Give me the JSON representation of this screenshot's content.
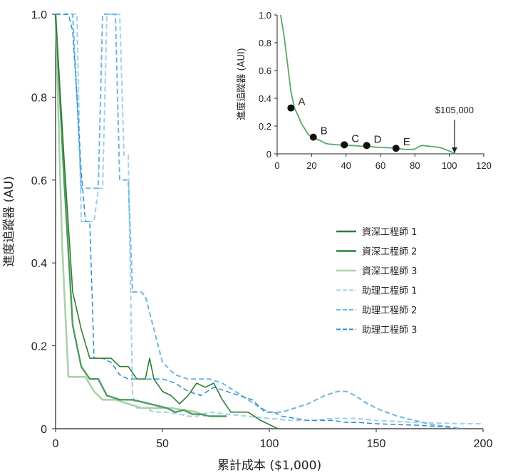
{
  "chart_data": [
    {
      "id": "main",
      "type": "line",
      "xlabel": "累計成本 ($1,000)",
      "ylabel": "進度追蹤器 (AU)",
      "xlim": [
        0,
        200
      ],
      "ylim": [
        0,
        1.0
      ],
      "xticks": [
        "0",
        "50",
        "100",
        "150",
        "200"
      ],
      "yticks": [
        "0",
        "0.2",
        "0.4",
        "0.6",
        "0.8",
        "1.0"
      ],
      "grid": false,
      "legend_position": "right",
      "series": [
        {
          "name": "資深工程師 1",
          "color": "#2e7d32",
          "dashed": false,
          "width": 1.6,
          "x": [
            0,
            4,
            8,
            12,
            16,
            22,
            26,
            30,
            34,
            38,
            42,
            44,
            46,
            50,
            54,
            58,
            62,
            66,
            70,
            74,
            78,
            82,
            86,
            90,
            96,
            104
          ],
          "y": [
            1.0,
            0.65,
            0.33,
            0.24,
            0.17,
            0.17,
            0.17,
            0.15,
            0.15,
            0.12,
            0.12,
            0.17,
            0.12,
            0.09,
            0.08,
            0.06,
            0.08,
            0.11,
            0.1,
            0.11,
            0.07,
            0.04,
            0.04,
            0.04,
            0.02,
            0.0
          ]
        },
        {
          "name": "資深工程師 2",
          "color": "#4d9a62",
          "dashed": false,
          "width": 2.4,
          "x": [
            0,
            4,
            8,
            12,
            16,
            20,
            24,
            30,
            36,
            40,
            44,
            48,
            52,
            56,
            60,
            64,
            68,
            72,
            76,
            80
          ],
          "y": [
            1.0,
            0.6,
            0.25,
            0.15,
            0.12,
            0.12,
            0.08,
            0.07,
            0.07,
            0.065,
            0.06,
            0.055,
            0.05,
            0.04,
            0.045,
            0.035,
            0.035,
            0.03,
            0.03,
            0.03
          ]
        },
        {
          "name": "資深工程師 3",
          "color": "#a8d3a8",
          "dashed": false,
          "width": 2.6,
          "x": [
            0,
            3,
            6,
            10,
            14,
            18,
            22,
            28,
            34,
            40,
            46,
            54,
            60,
            66,
            70
          ],
          "y": [
            1.0,
            0.45,
            0.125,
            0.125,
            0.125,
            0.09,
            0.07,
            0.07,
            0.06,
            0.05,
            0.05,
            0.05,
            0.045,
            0.04,
            0.03
          ]
        },
        {
          "name": "助理工程師 1",
          "color": "#9fd0ec",
          "dashed": true,
          "width": 2.0,
          "x": [
            0,
            2,
            4,
            6,
            8,
            10,
            12,
            14,
            18,
            20,
            22,
            24,
            26,
            28,
            30,
            32,
            34,
            36,
            38,
            42,
            46,
            52,
            58,
            62,
            66,
            72,
            80,
            90,
            100,
            110,
            120,
            130,
            140,
            150,
            170,
            190,
            200
          ],
          "y": [
            1.0,
            1.0,
            1.0,
            1.0,
            1.0,
            1.0,
            0.5,
            0.5,
            0.5,
            0.58,
            0.58,
            1.0,
            1.0,
            1.0,
            1.0,
            0.66,
            0.66,
            0.08,
            0.05,
            0.05,
            0.04,
            0.04,
            0.035,
            0.03,
            0.03,
            0.04,
            0.035,
            0.03,
            0.025,
            0.02,
            0.02,
            0.025,
            0.025,
            0.02,
            0.015,
            0.012,
            0.012
          ]
        },
        {
          "name": "助理工程師 2",
          "color": "#6bb8e0",
          "dashed": true,
          "width": 2.0,
          "x": [
            0,
            2,
            4,
            6,
            8,
            10,
            12,
            14,
            16,
            18,
            20,
            22,
            24,
            26,
            28,
            30,
            32,
            34,
            36,
            38,
            40,
            42,
            44,
            46,
            48,
            50,
            56,
            62,
            68,
            72,
            78,
            84,
            90,
            96,
            100,
            106,
            112,
            118,
            126,
            132,
            136,
            140,
            146,
            152,
            160,
            168,
            176,
            184,
            190
          ],
          "y": [
            1.0,
            1.0,
            1.0,
            1.0,
            1.0,
            0.8,
            0.58,
            0.58,
            0.58,
            0.58,
            0.58,
            1.0,
            1.0,
            1.0,
            1.0,
            0.6,
            0.6,
            0.6,
            0.33,
            0.33,
            0.33,
            0.32,
            0.28,
            0.24,
            0.2,
            0.16,
            0.13,
            0.12,
            0.12,
            0.12,
            0.11,
            0.09,
            0.07,
            0.05,
            0.04,
            0.04,
            0.05,
            0.06,
            0.08,
            0.09,
            0.09,
            0.08,
            0.06,
            0.045,
            0.03,
            0.02,
            0.01,
            0.005,
            0.0
          ]
        },
        {
          "name": "助理工程師 3",
          "color": "#2a8fce",
          "dashed": true,
          "width": 1.5,
          "x": [
            0,
            2,
            4,
            6,
            8,
            10,
            12,
            14,
            16,
            18,
            20,
            22,
            26,
            30,
            34,
            38,
            44,
            50,
            56,
            62,
            68,
            74,
            80,
            86,
            92,
            98,
            102,
            106,
            112,
            118,
            124,
            130,
            136,
            142,
            150,
            160,
            170,
            180,
            186
          ],
          "y": [
            1.0,
            1.0,
            1.0,
            1.0,
            0.96,
            0.8,
            0.62,
            0.5,
            0.5,
            0.17,
            0.17,
            0.17,
            0.16,
            0.13,
            0.12,
            0.12,
            0.12,
            0.12,
            0.11,
            0.09,
            0.08,
            0.1,
            0.09,
            0.08,
            0.07,
            0.04,
            0.04,
            0.03,
            0.025,
            0.02,
            0.02,
            0.02,
            0.015,
            0.015,
            0.012,
            0.01,
            0.008,
            0.005,
            0.003
          ]
        }
      ]
    },
    {
      "id": "inset",
      "type": "line",
      "xlabel": "",
      "ylabel": "進度追蹤器 (AUI)",
      "xlim": [
        0,
        120
      ],
      "ylim": [
        0,
        1.0
      ],
      "xticks": [
        "0",
        "20",
        "40",
        "60",
        "80",
        "100",
        "120"
      ],
      "yticks": [
        "0",
        "0.2",
        "0.4",
        "0.6",
        "0.8",
        "1.0"
      ],
      "grid": false,
      "series": [
        {
          "color": "#5aa86a",
          "x": [
            2,
            4,
            6,
            8,
            10,
            12,
            14,
            16,
            18,
            20,
            22,
            24,
            26,
            28,
            30,
            32,
            34,
            36,
            38,
            40,
            42,
            44,
            46,
            48,
            50,
            52,
            54,
            56,
            58,
            60,
            62,
            64,
            66,
            68,
            70,
            72,
            74,
            76,
            78,
            80,
            82,
            84,
            86,
            88,
            90,
            92,
            94,
            96,
            98,
            100,
            102,
            104
          ],
          "y": [
            1.0,
            0.85,
            0.65,
            0.45,
            0.33,
            0.28,
            0.22,
            0.18,
            0.14,
            0.12,
            0.115,
            0.1,
            0.09,
            0.075,
            0.07,
            0.068,
            0.066,
            0.064,
            0.062,
            0.062,
            0.06,
            0.06,
            0.058,
            0.056,
            0.055,
            0.055,
            0.053,
            0.05,
            0.048,
            0.046,
            0.045,
            0.044,
            0.043,
            0.042,
            0.04,
            0.035,
            0.033,
            0.032,
            0.032,
            0.034,
            0.05,
            0.06,
            0.058,
            0.055,
            0.052,
            0.05,
            0.046,
            0.04,
            0.03,
            0.02,
            0.01,
            0.0
          ]
        }
      ],
      "points": [
        {
          "label": "A",
          "x": 8,
          "y": 0.33
        },
        {
          "label": "B",
          "x": 21,
          "y": 0.12
        },
        {
          "label": "C",
          "x": 39,
          "y": 0.065
        },
        {
          "label": "D",
          "x": 52,
          "y": 0.06
        },
        {
          "label": "E",
          "x": 69,
          "y": 0.04
        }
      ],
      "annotation": {
        "label": "$105,000",
        "x": 103,
        "y": 0.0
      }
    }
  ]
}
